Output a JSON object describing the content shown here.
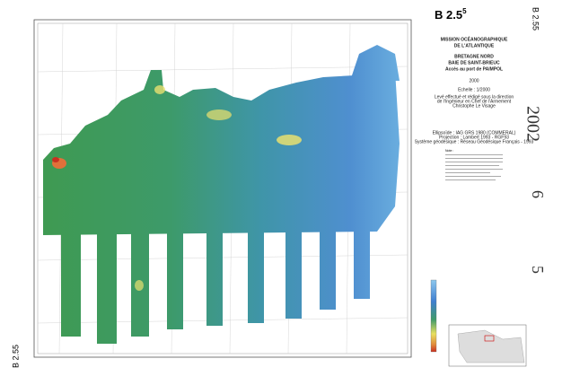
{
  "header": {
    "code": "B 2.5",
    "code_sup": "5",
    "corner_code": "B 2.55",
    "corner_code_bottom": "B 2.55"
  },
  "title": {
    "mission": [
      "MISSION OCÉANOGRAPHIQUE",
      "DE L'ATLANTIQUE"
    ],
    "region": [
      "BRETAGNE NORD",
      "BAIE DE SAINT-BRIEUC",
      "Accès au port de PAIMPOL"
    ],
    "year": "2000",
    "scale": "Echelle : 1/2000",
    "credits": [
      "Levé effectué et rédigé sous la direction",
      "de l'Ingénieur en Chef de l'Armement",
      "Christophe Le Visage"
    ]
  },
  "geodesy": [
    "Ellipsoïde : IAG GRS 1980 (COMMERAL)",
    "Projection : Lambert 1993 - RGF93",
    "Système géodésique : Réseau Géodésique Français - 1993"
  ],
  "notes": {
    "heading": "Note :"
  },
  "stamps": {
    "year": "2002",
    "sheet": "6",
    "number": "5"
  }
}
